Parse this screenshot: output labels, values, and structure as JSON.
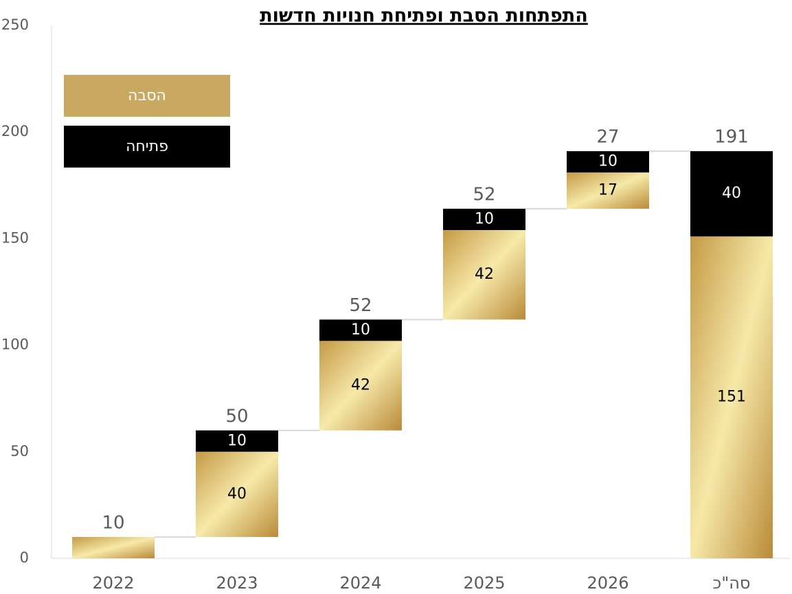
{
  "chart_data": {
    "type": "waterfall",
    "title": "התפתחות הסבת ופתיחת חנויות חדשות",
    "categories": [
      "2022",
      "2023",
      "2024",
      "2025",
      "2026",
      "סה\"כ"
    ],
    "series": [
      {
        "name": "הסבה",
        "color": "#c9a862",
        "values": [
          10,
          40,
          42,
          42,
          17,
          151
        ]
      },
      {
        "name": "פתיחה",
        "color": "#000000",
        "values": [
          null,
          10,
          10,
          10,
          10,
          40
        ]
      }
    ],
    "totals": [
      10,
      50,
      52,
      52,
      27,
      191
    ],
    "ylim": [
      0,
      250
    ],
    "yticks": [
      0,
      50,
      100,
      150,
      200,
      250
    ],
    "legend": "upper left",
    "grid": false
  }
}
